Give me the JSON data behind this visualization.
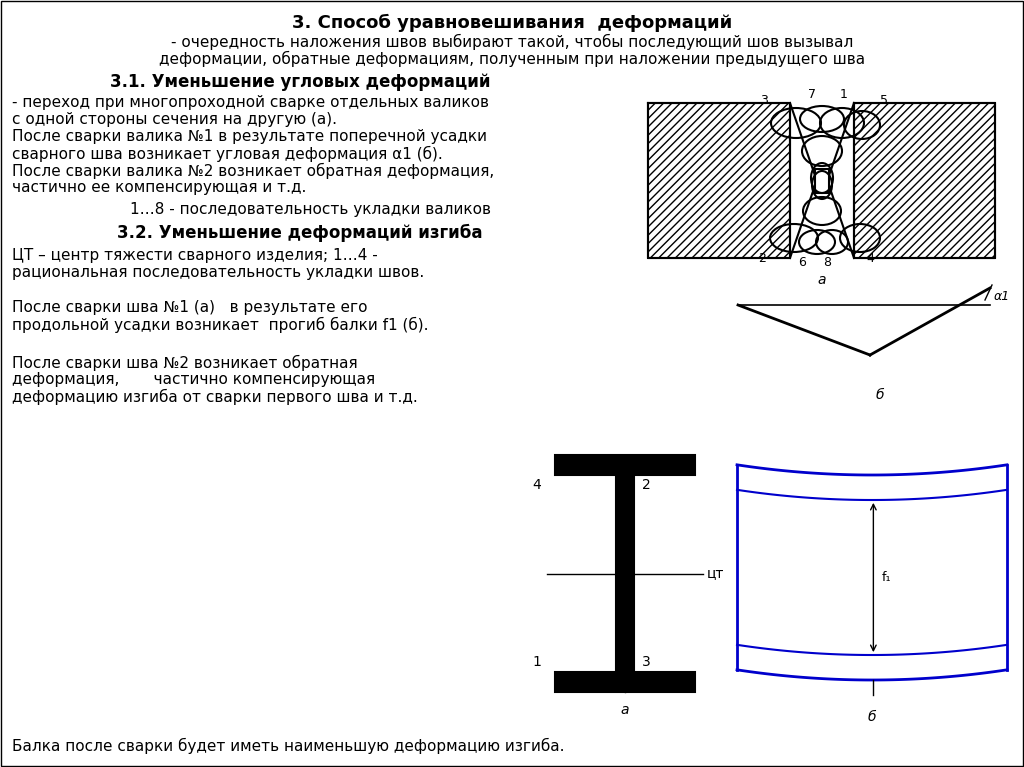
{
  "title": "3. Способ уравновешивания  деформаций",
  "sub1": "- очередность наложения швов выбирают такой, чтобы последующий шов вызывал",
  "sub2": "деформации, обратные деформациям, полученным при наложении предыдущего шва",
  "s31": "3.1. Уменьшение угловых деформаций",
  "t31_1": "- переход при многопроходной сварке отдельных валиков",
  "t31_2": "с одной стороны сечения на другую (а).",
  "t31_3": "После сварки валика №1 в результате поперечной усадки",
  "t31_4": "сварного шва возникает угловая деформация α1 (б).",
  "t31_5": "После сварки валика №2 возникает обратная деформация,",
  "t31_6": "частично ее компенсирующая и т.д.",
  "t31_7": "1…8 - последовательность укладки валиков",
  "s32": "3.2. Уменьшение деформаций изгиба",
  "t32_1": "ЦТ – центр тяжести сварного изделия; 1…4 -",
  "t32_2": "рациональная последовательность укладки швов.",
  "t32_3": "После сварки шва №1 (а)   в результате его",
  "t32_4": "продольной усадки возникает  прогиб балки f1 (б).",
  "t32_5": "После сварки шва №2 возникает обратная",
  "t32_6": "деформация,       частично компенсирующая",
  "t32_7": "деформацию изгиба от сварки первого шва и т.д.",
  "footer": "Балка после сварки будет иметь наименьшую деформацию изгиба.",
  "bg": "#ffffff",
  "black": "#000000",
  "blue": "#0000cc"
}
